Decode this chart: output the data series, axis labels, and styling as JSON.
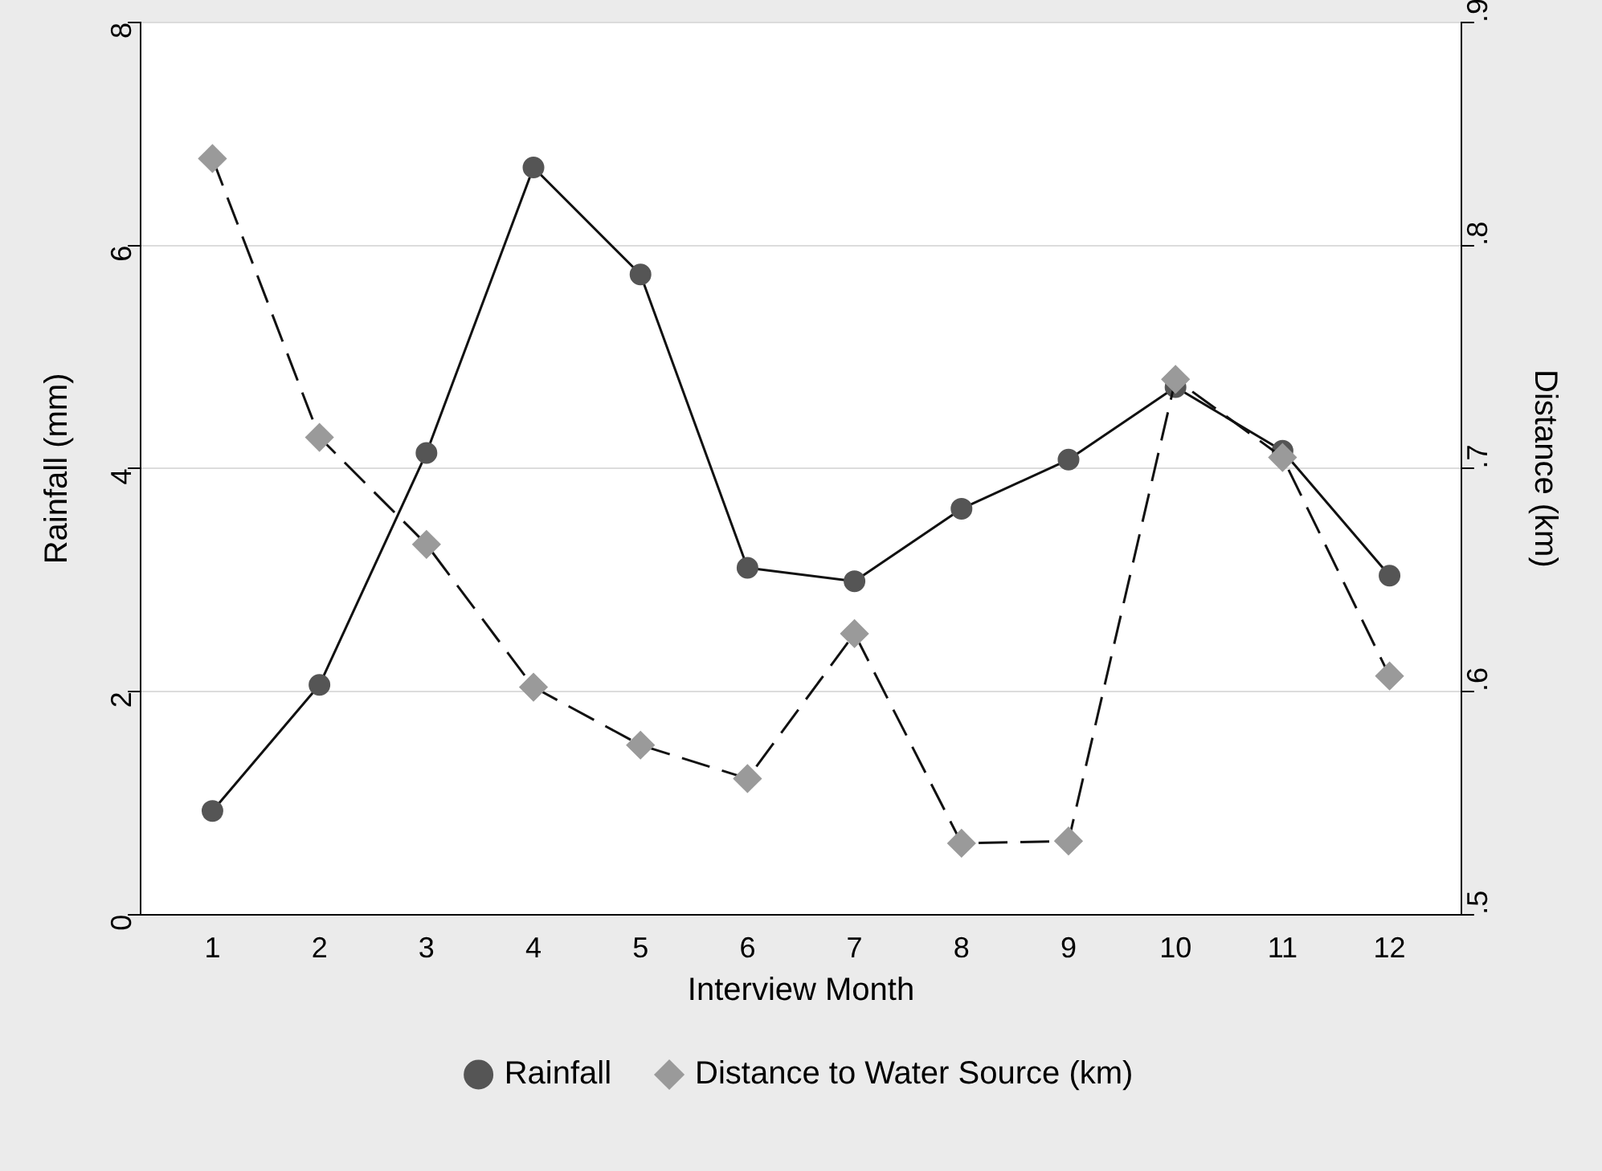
{
  "chart_data": {
    "type": "line",
    "xlabel": "Interview Month",
    "ylabel": "Rainfall (mm)",
    "y2label": "Distance (km)",
    "x": [
      1,
      2,
      3,
      4,
      5,
      6,
      7,
      8,
      9,
      10,
      11,
      12
    ],
    "xlim": [
      0.33,
      12.67
    ],
    "xticks": [
      1,
      2,
      3,
      4,
      5,
      6,
      7,
      8,
      9,
      10,
      11,
      12
    ],
    "ylim": [
      0,
      8
    ],
    "yticks": [
      0,
      2,
      4,
      6,
      8
    ],
    "y2lim": [
      0.5,
      0.9
    ],
    "y2ticks": [
      {
        "value": 0.5,
        "label": ".5"
      },
      {
        "value": 0.6,
        "label": ".6"
      },
      {
        "value": 0.7,
        "label": ".7"
      },
      {
        "value": 0.8,
        "label": ".8"
      },
      {
        "value": 0.9,
        "label": ".9"
      }
    ],
    "series": [
      {
        "name": "Rainfall",
        "color": "#555555",
        "marker": "circle",
        "line_style": "solid",
        "values": [
          0.93,
          2.06,
          4.14,
          6.7,
          5.74,
          3.11,
          2.99,
          3.64,
          4.08,
          4.73,
          4.16,
          3.04
        ]
      },
      {
        "name": "Distance to Water Source (km)",
        "color": "#9a9a9a",
        "marker": "diamond",
        "line_style": "dashed",
        "axis": "y2",
        "values": [
          0.839,
          0.714,
          0.666,
          0.602,
          0.576,
          0.561,
          0.626,
          0.532,
          0.533,
          0.74,
          0.705,
          0.607
        ]
      }
    ],
    "grid": "y",
    "legend": "bottom"
  }
}
